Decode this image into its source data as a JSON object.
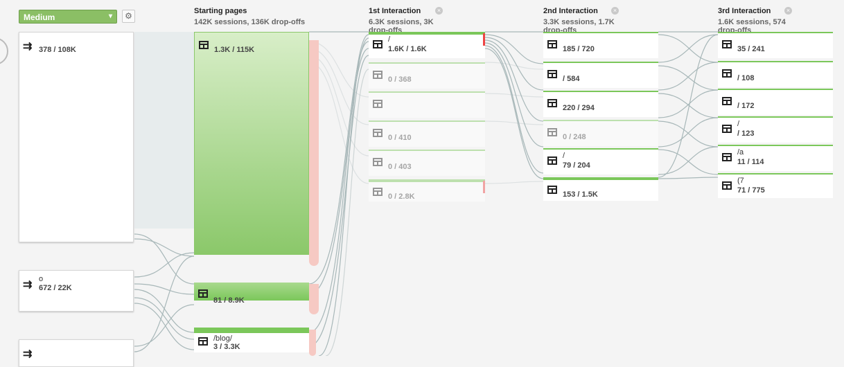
{
  "toolbar": {
    "dimension_label": "Medium",
    "dimension_chevron": "▾",
    "settings_icon": "⚙"
  },
  "columns": [
    {
      "title": "Starting pages",
      "summary": "142K sessions, 136K drop-offs"
    },
    {
      "title": "1st Interaction",
      "summary": "6.3K sessions, 3K drop-offs"
    },
    {
      "title": "2nd Interaction",
      "summary": "3.3K sessions, 1.7K drop-offs"
    },
    {
      "title": "3rd Interaction",
      "summary": "1.6K sessions, 574 drop-offs"
    }
  ],
  "close_icon": "×",
  "sources": [
    {
      "name": "",
      "stats": "378 / 108K"
    },
    {
      "name": "o",
      "stats": "672 / 22K"
    },
    {
      "name": "",
      "stats": ""
    }
  ],
  "starting_pages": [
    {
      "name": "",
      "stats": "1.3K / 115K"
    },
    {
      "name": "",
      "stats": "81 / 8.9K"
    },
    {
      "name": "/blog/",
      "stats": "3 / 3.3K"
    }
  ],
  "first_interaction": [
    {
      "name": "/",
      "stats": "1.6K / 1.6K"
    },
    {
      "name": "",
      "stats": "0 / 368"
    },
    {
      "name": "",
      "stats": ""
    },
    {
      "name": "",
      "stats": "0 / 410"
    },
    {
      "name": "",
      "stats": "0 / 403"
    },
    {
      "name": "",
      "stats": "0 / 2.8K"
    }
  ],
  "second_interaction": [
    {
      "name": "",
      "stats": "185 / 720"
    },
    {
      "name": "",
      "stats": "/ 584"
    },
    {
      "name": "",
      "stats": "220 / 294"
    },
    {
      "name": "",
      "stats": "0 / 248"
    },
    {
      "name": "/",
      "stats": "79 / 204"
    },
    {
      "name": "",
      "stats": "153 / 1.5K"
    }
  ],
  "third_interaction": [
    {
      "name": "",
      "stats": "35 / 241"
    },
    {
      "name": "",
      "stats": "/ 108"
    },
    {
      "name": "",
      "stats": "/ 172"
    },
    {
      "name": "/",
      "stats": "/ 123"
    },
    {
      "name": "/a",
      "stats": "11 / 114"
    },
    {
      "name": "(7",
      "stats": "71 / 775"
    }
  ],
  "colors": {
    "node_green": "#8bc86a",
    "node_green_light": "#d8eec8",
    "dropoff": "#f6c9c3",
    "flow": "#8aa0a3"
  }
}
